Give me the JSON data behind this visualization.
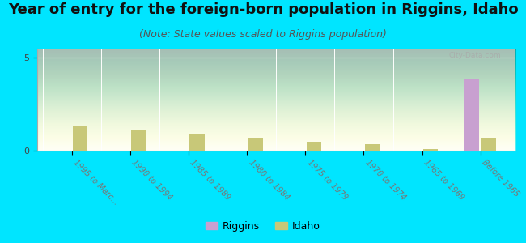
{
  "title": "Year of entry for the foreign-born population in Riggins, Idaho",
  "subtitle": "(Note: State values scaled to Riggins population)",
  "categories": [
    "1995 to Marc...",
    "1990 to 1994",
    "1985 to 1989",
    "1980 to 1984",
    "1975 to 1979",
    "1970 to 1974",
    "1965 to 1969",
    "Before 1965"
  ],
  "riggins_values": [
    0,
    0,
    0,
    0,
    0,
    0,
    0,
    3.9
  ],
  "idaho_values": [
    1.3,
    1.1,
    0.9,
    0.7,
    0.5,
    0.35,
    0.1,
    0.7
  ],
  "riggins_color": "#c8a0d0",
  "idaho_color": "#c8c878",
  "background_color": "#00e5ff",
  "ylim": [
    0,
    5.5
  ],
  "yticks": [
    0,
    5
  ],
  "bar_width": 0.25,
  "title_fontsize": 13,
  "subtitle_fontsize": 9,
  "watermark": "City-Data.com"
}
